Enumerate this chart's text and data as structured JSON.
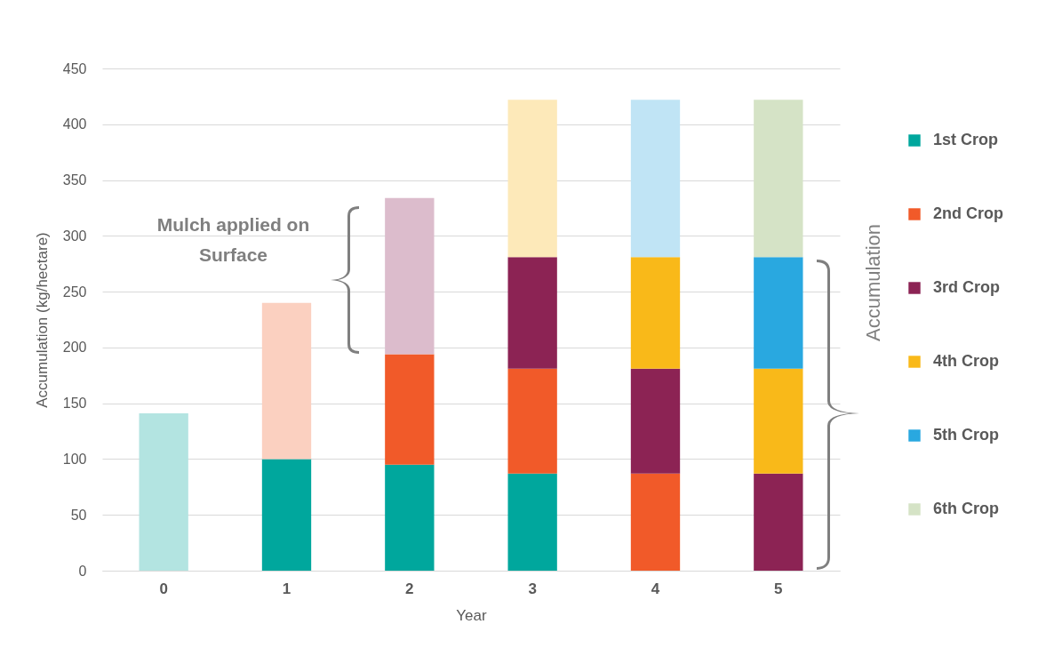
{
  "chart_data": {
    "type": "bar",
    "stacked": true,
    "xlabel": "Year",
    "ylabel": "Accumulation (kg/hectare)",
    "categories": [
      "0",
      "1",
      "2",
      "3",
      "4",
      "5"
    ],
    "series": [
      {
        "name": "1st Crop",
        "color": "#00a79d",
        "values": [
          null,
          100,
          95,
          87,
          null,
          null
        ]
      },
      {
        "name": "2nd Crop",
        "color": "#f15a29",
        "values": [
          null,
          null,
          99,
          94,
          87,
          null
        ]
      },
      {
        "name": "3rd Crop",
        "color": "#8c2354",
        "values": [
          null,
          null,
          null,
          100,
          94,
          87
        ]
      },
      {
        "name": "4th Crop",
        "color": "#f9b919",
        "values": [
          null,
          null,
          null,
          null,
          100,
          94
        ]
      },
      {
        "name": "5th Crop",
        "color": "#29a8e0",
        "values": [
          null,
          null,
          null,
          null,
          null,
          100
        ]
      },
      {
        "colors": [
          "#b3e4e1",
          "#fbd0c0",
          "#dcbccc",
          "#fde9b9",
          "#c0e4f5",
          null
        ],
        "values": [
          141,
          140,
          140,
          141,
          141,
          null
        ]
      },
      {
        "name": "6th Crop",
        "color": "#d5e3c6",
        "values": [
          null,
          null,
          null,
          null,
          null,
          141
        ]
      }
    ],
    "ylim": [
      0,
      450
    ],
    "yticks": [
      0,
      50,
      100,
      150,
      200,
      250,
      300,
      350,
      400,
      450
    ],
    "grid": "y",
    "legend": "right",
    "annotations": [
      "Mulch applied on Surface",
      "Accumulation"
    ]
  }
}
